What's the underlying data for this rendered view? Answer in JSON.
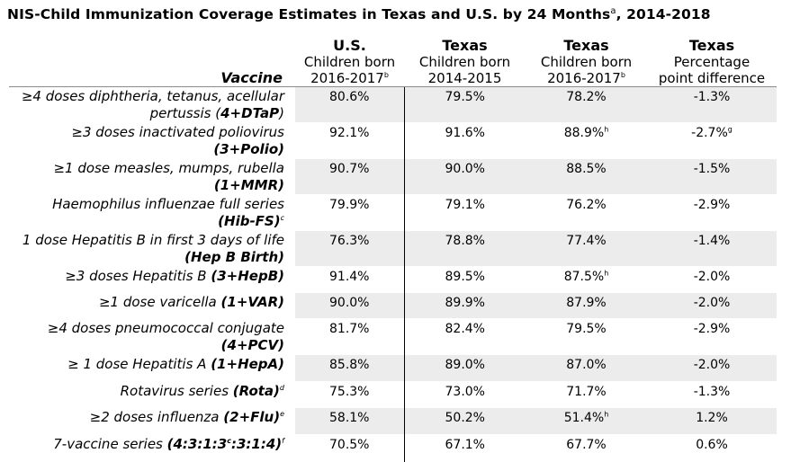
{
  "title": {
    "text": "NIS-Child Immunization Coverage Estimates in Texas and U.S. by 24 Months",
    "sup": "a",
    "suffix": ", 2014-2018"
  },
  "headers": {
    "vaccine": "Vaccine",
    "us": {
      "line1": "U.S.",
      "line2": "Children born",
      "line3": "2016-2017",
      "sup": "b"
    },
    "tx1": {
      "line1": "Texas",
      "line2": "Children born",
      "line3": "2014-2015"
    },
    "tx2": {
      "line1": "Texas",
      "line2": "Children born",
      "line3": "2016-2017",
      "sup": "b"
    },
    "diff": {
      "line1": "Texas",
      "line2": "Percentage",
      "line3": "point difference"
    }
  },
  "rows": [
    {
      "pre": "≥4 doses diphtheria, tetanus, acellular pertussis (",
      "bold": "4+DTaP",
      "post": ")",
      "sup": "",
      "us": "80.6%",
      "tx1": "79.5%",
      "tx2": "78.2%",
      "tx2_sup": "",
      "diff": "-1.3%",
      "diff_sup": ""
    },
    {
      "pre": "≥3 doses inactivated poliovirus ",
      "bold": "(3+Polio)",
      "post": "",
      "sup": "",
      "us": "92.1%",
      "tx1": "91.6%",
      "tx2": "88.9%",
      "tx2_sup": "h",
      "diff": "-2.7%",
      "diff_sup": "g"
    },
    {
      "pre": "≥1 dose measles, mumps, rubella ",
      "bold": "(1+MMR)",
      "post": "",
      "sup": "",
      "us": "90.7%",
      "tx1": "90.0%",
      "tx2": "88.5%",
      "tx2_sup": "",
      "diff": "-1.5%",
      "diff_sup": ""
    },
    {
      "pre": "Haemophilus influenzae full series ",
      "bold": "(Hib-FS)",
      "post": "",
      "sup": "c",
      "us": "79.9%",
      "tx1": "79.1%",
      "tx2": "76.2%",
      "tx2_sup": "",
      "diff": "-2.9%",
      "diff_sup": ""
    },
    {
      "pre": "1 dose Hepatitis B in first 3 days of life ",
      "bold": "(Hep B Birth)",
      "post": "",
      "sup": "",
      "us": "76.3%",
      "tx1": "78.8%",
      "tx2": "77.4%",
      "tx2_sup": "",
      "diff": "-1.4%",
      "diff_sup": ""
    },
    {
      "pre": "≥3 doses Hepatitis B ",
      "bold": "(3+HepB)",
      "post": "",
      "sup": "",
      "us": "91.4%",
      "tx1": "89.5%",
      "tx2": "87.5%",
      "tx2_sup": "h",
      "diff": "-2.0%",
      "diff_sup": ""
    },
    {
      "pre": "≥1 dose varicella ",
      "bold": "(1+VAR)",
      "post": "",
      "sup": "",
      "us": "90.0%",
      "tx1": "89.9%",
      "tx2": "87.9%",
      "tx2_sup": "",
      "diff": "-2.0%",
      "diff_sup": ""
    },
    {
      "pre": "≥4 doses pneumococcal conjugate ",
      "bold": "(4+PCV)",
      "post": "",
      "sup": "",
      "us": "81.7%",
      "tx1": "82.4%",
      "tx2": "79.5%",
      "tx2_sup": "",
      "diff": "-2.9%",
      "diff_sup": ""
    },
    {
      "pre": "≥ 1 dose Hepatitis A ",
      "bold": "(1+HepA)",
      "post": "",
      "sup": "",
      "us": "85.8%",
      "tx1": "89.0%",
      "tx2": "87.0%",
      "tx2_sup": "",
      "diff": "-2.0%",
      "diff_sup": ""
    },
    {
      "pre": "Rotavirus series ",
      "bold": "(Rota)",
      "post": "",
      "sup": "d",
      "us": "75.3%",
      "tx1": "73.0%",
      "tx2": "71.7%",
      "tx2_sup": "",
      "diff": "-1.3%",
      "diff_sup": ""
    },
    {
      "pre": "≥2 doses influenza ",
      "bold": "(2+Flu)",
      "post": "",
      "sup": "e",
      "us": "58.1%",
      "tx1": "50.2%",
      "tx2": "51.4%",
      "tx2_sup": "h",
      "diff": "1.2%",
      "diff_sup": ""
    },
    {
      "pre": "7-vaccine series ",
      "bold": "(4:3:1:3",
      "bold_sup": "c",
      "bold2": ":3:1:4)",
      "post": "",
      "sup": "f",
      "us": "70.5%",
      "tx1": "67.1%",
      "tx2": "67.7%",
      "tx2_sup": "",
      "diff": "0.6%",
      "diff_sup": ""
    }
  ]
}
